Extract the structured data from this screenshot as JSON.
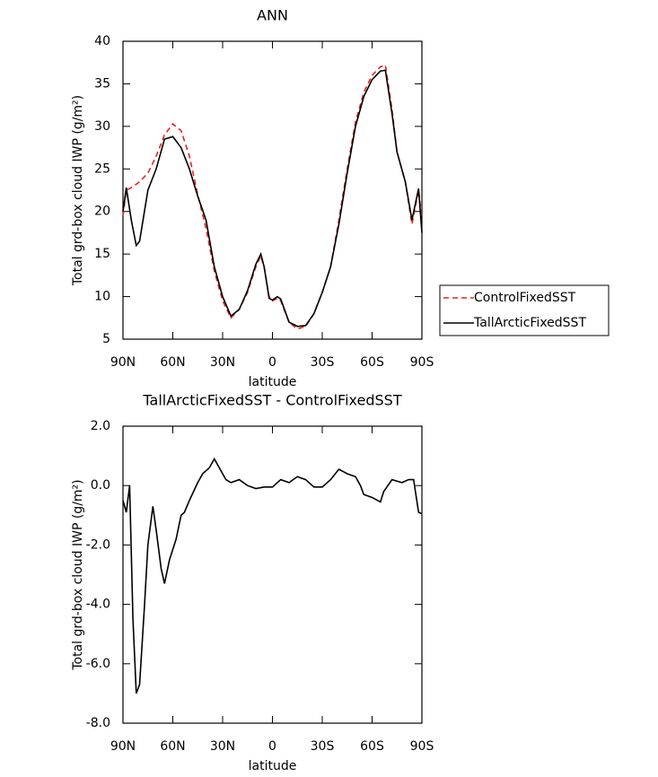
{
  "chart_data": [
    {
      "type": "line",
      "title": "ANN",
      "xlabel": "latitude",
      "ylabel": "Total grd-box cloud IWP (g/m²)",
      "x": [
        90,
        88,
        85,
        82,
        80,
        75,
        70,
        65,
        60,
        55,
        50,
        45,
        40,
        35,
        30,
        25,
        20,
        15,
        10,
        7,
        5,
        2,
        0,
        -3,
        -5,
        -10,
        -15,
        -20,
        -25,
        -30,
        -35,
        -40,
        -45,
        -50,
        -55,
        -60,
        -65,
        -68,
        -72,
        -75,
        -80,
        -84,
        -88,
        -90
      ],
      "series": [
        {
          "name": "ControlFixedSST",
          "color": "#e8251f",
          "dash": "dashed",
          "values": [
            19.5,
            22.5,
            22.8,
            23.2,
            23.5,
            24.5,
            26.5,
            29,
            30.3,
            29.5,
            26.5,
            22,
            18,
            13,
            9.5,
            7.5,
            8.5,
            10.5,
            13.5,
            14.8,
            13.5,
            10,
            9.5,
            9.8,
            9.5,
            7,
            6.2,
            6.5,
            8,
            10.5,
            13.5,
            19,
            25,
            30.5,
            34,
            36,
            37,
            37.2,
            32,
            27,
            23.5,
            18.5,
            22.5,
            19
          ]
        },
        {
          "name": "TallArcticFixedSST",
          "color": "#000000",
          "dash": "solid",
          "values": [
            20,
            22.8,
            19,
            16,
            16.5,
            22.5,
            25,
            28.5,
            28.8,
            27.5,
            25,
            21.8,
            19,
            13.5,
            10,
            7.7,
            8.5,
            10.7,
            13.8,
            15,
            13.5,
            9.8,
            9.6,
            10,
            9.7,
            7,
            6.5,
            6.6,
            8,
            10.5,
            13.5,
            18.5,
            24.5,
            30,
            33.5,
            35.5,
            36.5,
            36.6,
            31.5,
            27,
            23.5,
            19,
            22.7,
            17.5
          ]
        }
      ],
      "xlim": [
        90,
        -90
      ],
      "xticks": [
        {
          "value": 90,
          "label": "90N"
        },
        {
          "value": 60,
          "label": "60N"
        },
        {
          "value": 30,
          "label": "30N"
        },
        0,
        {
          "value": -30,
          "label": "30S"
        },
        {
          "value": -60,
          "label": "60S"
        },
        {
          "value": -90,
          "label": "90S"
        }
      ],
      "ylim": [
        5,
        40
      ],
      "yticks": [
        5,
        10,
        15,
        20,
        25,
        30,
        35,
        40
      ],
      "legend": "right"
    },
    {
      "type": "line",
      "title": "TallArcticFixedSST - ControlFixedSST",
      "xlabel": "latitude",
      "ylabel": "Total grd-box cloud IWP (g/m²)",
      "x": [
        90,
        88,
        86,
        84,
        82,
        80,
        77,
        75,
        72,
        70,
        67,
        65,
        62,
        58,
        55,
        53,
        50,
        45,
        42,
        38,
        35,
        32,
        28,
        25,
        20,
        15,
        10,
        5,
        0,
        -5,
        -10,
        -15,
        -20,
        -25,
        -30,
        -35,
        -40,
        -45,
        -50,
        -53,
        -55,
        -60,
        -65,
        -67,
        -72,
        -75,
        -78,
        -82,
        -85,
        -88,
        -90
      ],
      "color": "#000000",
      "values": [
        -0.5,
        -0.9,
        0,
        -4.5,
        -7,
        -6.7,
        -4,
        -2,
        -0.7,
        -1.5,
        -2.8,
        -3.3,
        -2.5,
        -1.8,
        -1,
        -0.9,
        -0.5,
        0.1,
        0.4,
        0.6,
        0.9,
        0.6,
        0.2,
        0.1,
        0.2,
        0,
        -0.1,
        -0.05,
        -0.05,
        0.2,
        0.1,
        0.3,
        0.2,
        -0.05,
        -0.05,
        0.2,
        0.55,
        0.4,
        0.3,
        0,
        -0.3,
        -0.4,
        -0.55,
        -0.2,
        0.2,
        0.15,
        0.1,
        0.2,
        0.2,
        -0.9,
        -0.95
      ],
      "xlim": [
        90,
        -90
      ],
      "xticks": [
        {
          "value": 90,
          "label": "90N"
        },
        {
          "value": 60,
          "label": "60N"
        },
        {
          "value": 30,
          "label": "30N"
        },
        0,
        {
          "value": -30,
          "label": "30S"
        },
        {
          "value": -60,
          "label": "60S"
        },
        {
          "value": -90,
          "label": "90S"
        }
      ],
      "ylim": [
        -8,
        2
      ],
      "yticks": [
        {
          "value": 2,
          "label": "2.0"
        },
        {
          "value": 0,
          "label": "0.0"
        },
        {
          "value": -2,
          "label": "-2.0"
        },
        {
          "value": -4,
          "label": "-4.0"
        },
        {
          "value": -6,
          "label": "-6.0"
        },
        {
          "value": -8,
          "label": "-8.0"
        }
      ]
    }
  ]
}
